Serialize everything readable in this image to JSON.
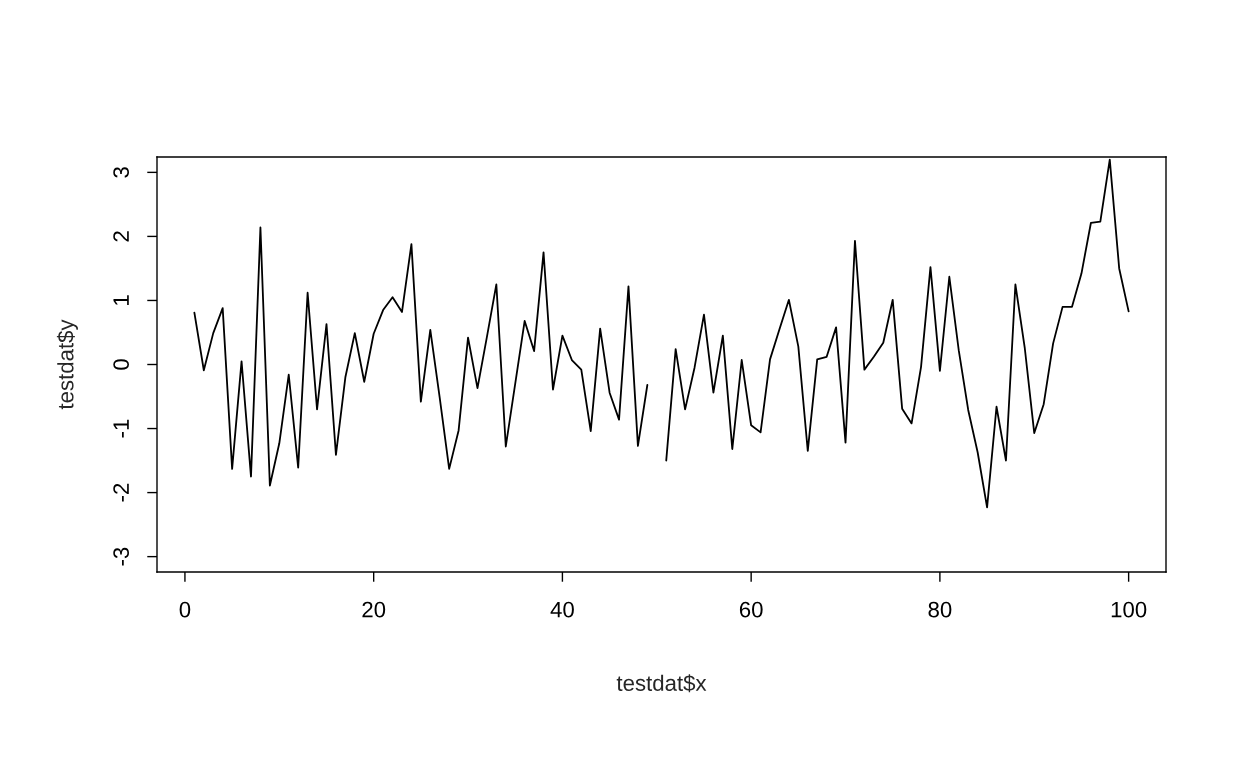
{
  "chart_data": {
    "type": "line",
    "xlabel": "testdat$x",
    "ylabel": "testdat$y",
    "x": [
      1,
      2,
      3,
      4,
      5,
      6,
      7,
      8,
      9,
      10,
      11,
      12,
      13,
      14,
      15,
      16,
      17,
      18,
      19,
      20,
      21,
      22,
      23,
      24,
      25,
      26,
      27,
      28,
      29,
      30,
      31,
      32,
      33,
      34,
      35,
      36,
      37,
      38,
      39,
      40,
      41,
      42,
      43,
      44,
      45,
      46,
      47,
      48,
      49,
      50,
      51,
      52,
      53,
      54,
      55,
      56,
      57,
      58,
      59,
      60,
      61,
      62,
      63,
      64,
      65,
      66,
      67,
      68,
      69,
      70,
      71,
      72,
      73,
      74,
      75,
      76,
      77,
      78,
      79,
      80,
      81,
      82,
      83,
      84,
      85,
      86,
      87,
      88,
      89,
      90,
      91,
      92,
      93,
      94,
      95,
      96,
      97,
      98,
      99,
      100
    ],
    "series": [
      {
        "color": "#000000",
        "values": [
          0.81,
          -0.09,
          0.49,
          0.88,
          -1.63,
          0.05,
          -1.75,
          2.14,
          -1.89,
          -1.23,
          -0.16,
          -1.61,
          1.12,
          -0.7,
          0.63,
          -1.41,
          -0.2,
          0.49,
          -0.27,
          0.48,
          0.85,
          1.05,
          0.82,
          1.88,
          -0.58,
          0.54,
          -0.52,
          -1.63,
          -1.03,
          0.42,
          -0.37,
          0.43,
          1.25,
          -1.28,
          -0.3,
          0.68,
          0.21,
          1.75,
          -0.39,
          0.45,
          0.07,
          -0.08,
          -1.04,
          0.56,
          -0.44,
          -0.86,
          1.22,
          -1.27,
          -0.32,
          null,
          -1.5,
          0.24,
          -0.7,
          -0.05,
          0.78,
          -0.44,
          0.45,
          -1.32,
          0.07,
          -0.95,
          -1.06,
          0.08,
          0.55,
          1.01,
          0.28,
          -1.35,
          0.08,
          0.12,
          0.58,
          -1.22,
          1.93,
          -0.08,
          0.12,
          0.34,
          1.01,
          -0.69,
          -0.92,
          -0.04,
          1.52,
          -0.1,
          1.37,
          0.22,
          -0.71,
          -1.37,
          -2.23,
          -0.66,
          -1.5,
          1.25,
          0.25,
          -1.07,
          -0.62,
          0.33,
          0.9,
          0.9,
          1.42,
          2.21,
          2.23,
          3.2,
          1.5,
          0.83
        ]
      }
    ],
    "xlim": [
      -2.96,
      103.96
    ],
    "ylim": [
      -3.24,
      3.24
    ],
    "xticks": [
      0,
      20,
      40,
      60,
      80,
      100
    ],
    "yticks": [
      -3,
      -2,
      -1,
      0,
      1,
      2,
      3
    ],
    "grid": false,
    "legend": false,
    "marker": "none",
    "line_style": "solid"
  }
}
